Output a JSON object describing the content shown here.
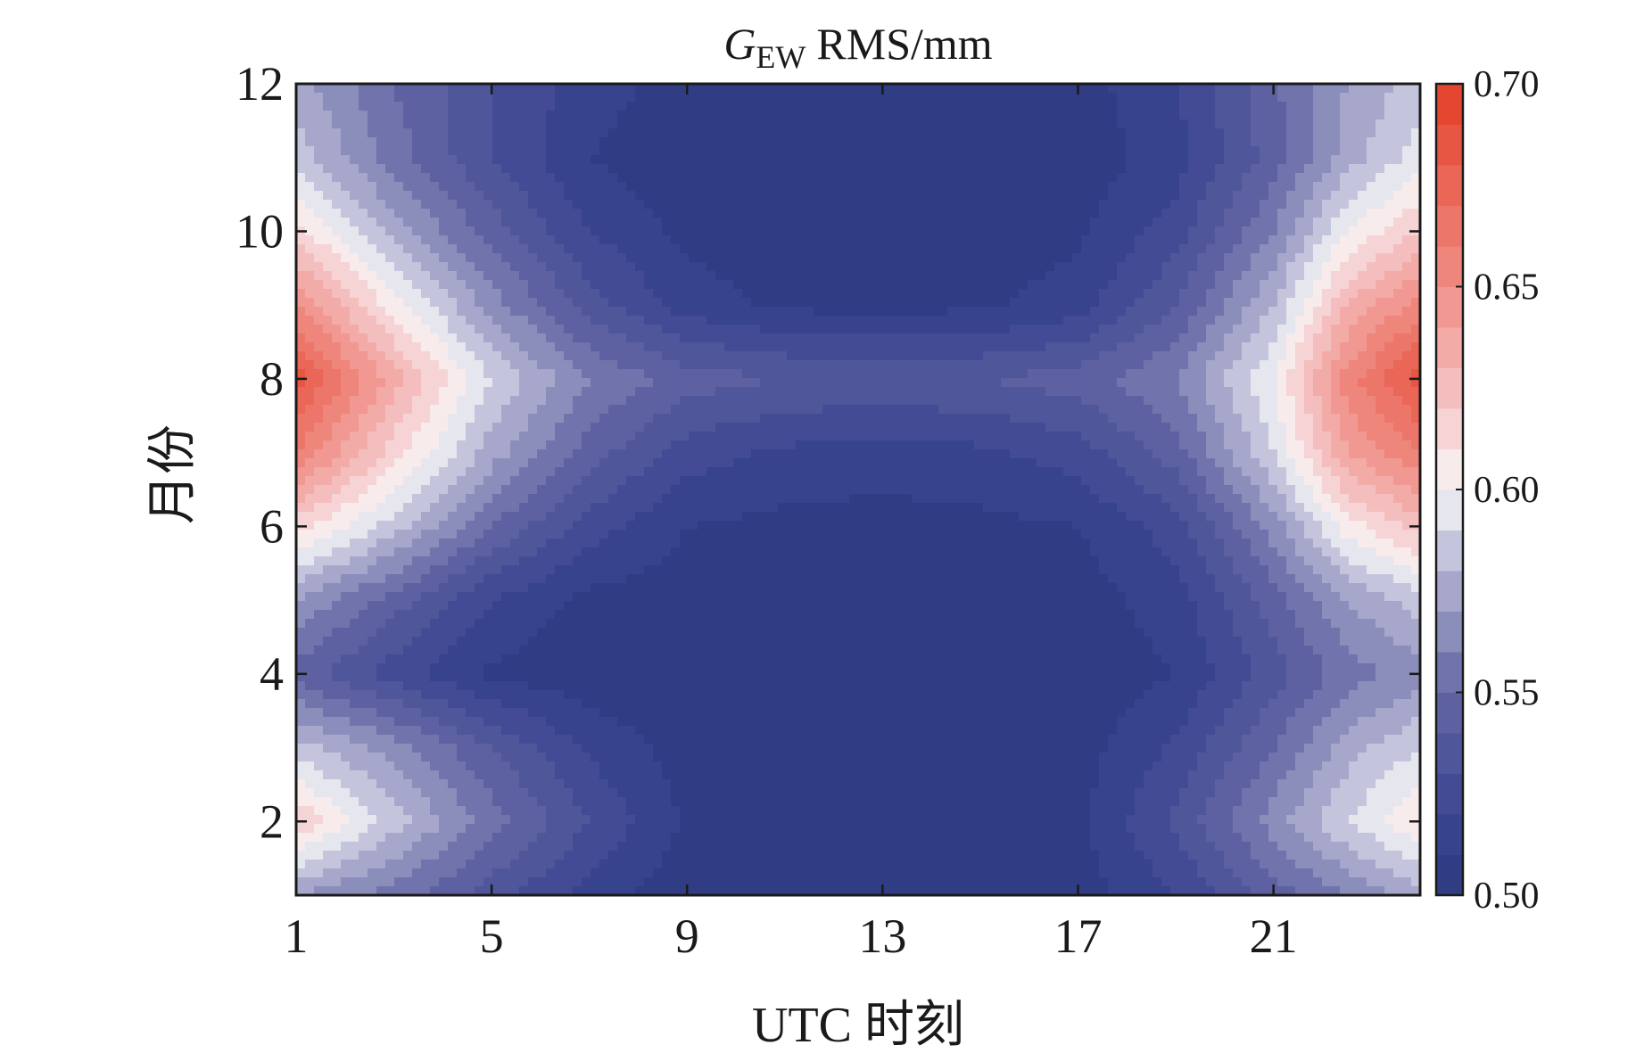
{
  "chart_data": {
    "type": "heatmap",
    "title": {
      "symbol": "G",
      "subscript": "EW",
      "rest": "RMS/mm"
    },
    "xlabel": "UTC 时刻",
    "ylabel": "月份",
    "xlim": [
      1,
      24
    ],
    "ylim": [
      1,
      12
    ],
    "xticks": [
      1,
      5,
      9,
      13,
      17,
      21
    ],
    "yticks": [
      2,
      4,
      6,
      8,
      10,
      12
    ],
    "x": [
      1,
      3,
      5,
      7,
      9,
      11,
      13,
      15,
      17,
      19,
      21,
      22.5,
      24
    ],
    "y": [
      1,
      2,
      3,
      4,
      5,
      6,
      7,
      8,
      9,
      10,
      11,
      12
    ],
    "z": [
      [
        0.57,
        0.555,
        0.535,
        0.515,
        0.503,
        0.5,
        0.5,
        0.5,
        0.505,
        0.52,
        0.545,
        0.56,
        0.575
      ],
      [
        0.62,
        0.585,
        0.555,
        0.53,
        0.508,
        0.502,
        0.502,
        0.502,
        0.508,
        0.532,
        0.565,
        0.59,
        0.61
      ],
      [
        0.585,
        0.565,
        0.54,
        0.518,
        0.505,
        0.503,
        0.502,
        0.503,
        0.505,
        0.522,
        0.55,
        0.575,
        0.59
      ],
      [
        0.545,
        0.525,
        0.508,
        0.503,
        0.502,
        0.502,
        0.502,
        0.502,
        0.503,
        0.51,
        0.535,
        0.555,
        0.565
      ],
      [
        0.57,
        0.545,
        0.52,
        0.507,
        0.504,
        0.503,
        0.503,
        0.503,
        0.505,
        0.515,
        0.545,
        0.57,
        0.585
      ],
      [
        0.615,
        0.585,
        0.55,
        0.525,
        0.51,
        0.507,
        0.506,
        0.507,
        0.51,
        0.525,
        0.565,
        0.605,
        0.625
      ],
      [
        0.66,
        0.615,
        0.575,
        0.545,
        0.525,
        0.518,
        0.515,
        0.518,
        0.525,
        0.545,
        0.59,
        0.64,
        0.66
      ],
      [
        0.685,
        0.635,
        0.59,
        0.56,
        0.545,
        0.54,
        0.538,
        0.54,
        0.545,
        0.56,
        0.6,
        0.655,
        0.685
      ],
      [
        0.65,
        0.605,
        0.565,
        0.535,
        0.515,
        0.508,
        0.506,
        0.508,
        0.515,
        0.54,
        0.58,
        0.63,
        0.655
      ],
      [
        0.615,
        0.575,
        0.545,
        0.52,
        0.507,
        0.504,
        0.503,
        0.504,
        0.508,
        0.525,
        0.56,
        0.6,
        0.62
      ],
      [
        0.585,
        0.555,
        0.53,
        0.51,
        0.503,
        0.502,
        0.502,
        0.502,
        0.504,
        0.515,
        0.545,
        0.575,
        0.595
      ],
      [
        0.575,
        0.55,
        0.53,
        0.515,
        0.505,
        0.502,
        0.502,
        0.502,
        0.505,
        0.52,
        0.548,
        0.57,
        0.585
      ]
    ],
    "colorbar": {
      "min": 0.5,
      "max": 0.7,
      "ticks": [
        "0.50",
        "0.55",
        "0.60",
        "0.65",
        "0.70"
      ],
      "levels": 20,
      "colormap": [
        {
          "value": 0.5,
          "color": "#2c3a80"
        },
        {
          "value": 0.52,
          "color": "#3b4690"
        },
        {
          "value": 0.55,
          "color": "#6466a4"
        },
        {
          "value": 0.58,
          "color": "#b3b4d3"
        },
        {
          "value": 0.6,
          "color": "#f7f6f8"
        },
        {
          "value": 0.62,
          "color": "#f6c8c9"
        },
        {
          "value": 0.65,
          "color": "#ef8e86"
        },
        {
          "value": 0.7,
          "color": "#e43e25"
        }
      ]
    }
  }
}
